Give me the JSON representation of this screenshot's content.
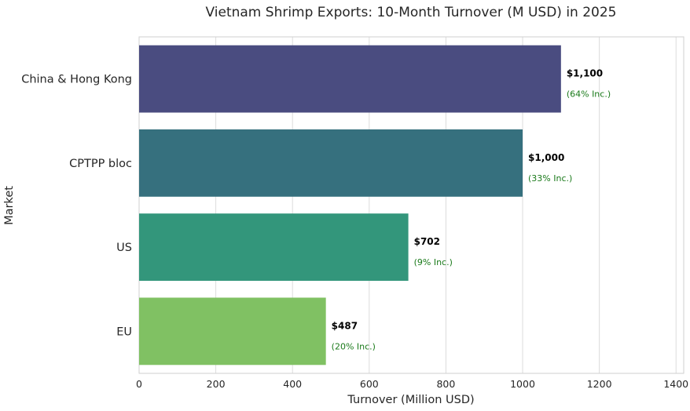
{
  "chart_data": {
    "type": "bar",
    "orientation": "horizontal",
    "title": "Vietnam Shrimp Exports: 10-Month Turnover (M USD) in 2025",
    "xlabel": "Turnover (Million USD)",
    "ylabel": "Market",
    "xlim": [
      0,
      1420
    ],
    "xticks": [
      0,
      200,
      400,
      600,
      800,
      1000,
      1200,
      1400
    ],
    "grid": "vertical",
    "categories": [
      "China & Hong Kong",
      "CPTPP bloc",
      "US",
      "EU"
    ],
    "values": [
      1100,
      1000,
      702,
      487
    ],
    "value_labels": [
      "$1,100",
      "$1,000",
      "$702",
      "$487"
    ],
    "growth_labels": [
      "(64% Inc.)",
      "(33% Inc.)",
      "(9% Inc.)",
      "(20% Inc.)"
    ],
    "colors": [
      "#4a4c80",
      "#36707e",
      "#33967b",
      "#80c163"
    ]
  }
}
